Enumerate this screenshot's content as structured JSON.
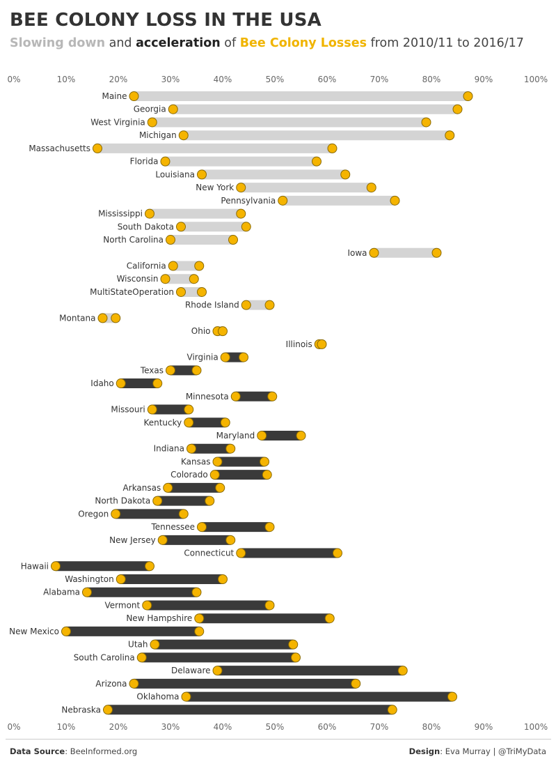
{
  "header": {
    "title": "BEE COLONY LOSS IN THE USA",
    "subtitle_part1": "Slowing down",
    "subtitle_part2": " and ",
    "subtitle_part3": "acceleration",
    "subtitle_part4": " of ",
    "subtitle_part5": "Bee Colony Losses",
    "subtitle_part6": " from 2010/11 to 2016/17"
  },
  "footer": {
    "source_label": "Data Source",
    "source_value": ": BeeInformed.org",
    "design_label": "Design",
    "design_value": ": Eva Murray | @TriMyData"
  },
  "colors": {
    "dot": "#f5b400",
    "dot_stroke": "#8a6a00",
    "bar_slowing": "#d4d4d4",
    "bar_accelerating": "#3a3a3a"
  },
  "chart_data": {
    "type": "dumbbell",
    "title": "BEE COLONY LOSS IN THE USA",
    "xlim": [
      0,
      100
    ],
    "x_ticks": [
      "0%",
      "10%",
      "20%",
      "30%",
      "40%",
      "50%",
      "60%",
      "70%",
      "80%",
      "90%",
      "100%"
    ],
    "grid": false,
    "legend": "none",
    "rows": [
      {
        "state": "Maine",
        "low": 23,
        "high": 87,
        "trend": "slowing"
      },
      {
        "state": "Georgia",
        "low": 30.5,
        "high": 85,
        "trend": "slowing"
      },
      {
        "state": "West Virginia",
        "low": 26.5,
        "high": 79,
        "trend": "slowing"
      },
      {
        "state": "Michigan",
        "low": 32.5,
        "high": 83.5,
        "trend": "slowing"
      },
      {
        "state": "Massachusetts",
        "low": 16,
        "high": 61,
        "trend": "slowing"
      },
      {
        "state": "Florida",
        "low": 29,
        "high": 58,
        "trend": "slowing"
      },
      {
        "state": "Louisiana",
        "low": 36,
        "high": 63.5,
        "trend": "slowing"
      },
      {
        "state": "New York",
        "low": 43.5,
        "high": 68.5,
        "trend": "slowing"
      },
      {
        "state": "Pennsylvania",
        "low": 51.5,
        "high": 73,
        "trend": "slowing"
      },
      {
        "state": "Mississippi",
        "low": 26,
        "high": 43.5,
        "trend": "slowing"
      },
      {
        "state": "South Dakota",
        "low": 32,
        "high": 44.5,
        "trend": "slowing"
      },
      {
        "state": "North Carolina",
        "low": 30,
        "high": 42,
        "trend": "slowing"
      },
      {
        "state": "Iowa",
        "low": 69,
        "high": 81,
        "trend": "slowing"
      },
      {
        "state": "California",
        "low": 30.5,
        "high": 35.5,
        "trend": "slowing"
      },
      {
        "state": "Wisconsin",
        "low": 29,
        "high": 34.5,
        "trend": "slowing"
      },
      {
        "state": "MultiStateOperation",
        "low": 32,
        "high": 36,
        "trend": "slowing"
      },
      {
        "state": "Rhode Island",
        "low": 44.5,
        "high": 49,
        "trend": "slowing"
      },
      {
        "state": "Montana",
        "low": 17,
        "high": 19.5,
        "trend": "slowing"
      },
      {
        "state": "Ohio",
        "low": 39,
        "high": 40,
        "trend": "slowing"
      },
      {
        "state": "Illinois",
        "low": 58.5,
        "high": 59,
        "trend": "slowing"
      },
      {
        "state": "Virginia",
        "low": 40.5,
        "high": 44,
        "trend": "accelerating"
      },
      {
        "state": "Texas",
        "low": 30,
        "high": 35,
        "trend": "accelerating"
      },
      {
        "state": "Idaho",
        "low": 20.5,
        "high": 27.5,
        "trend": "accelerating"
      },
      {
        "state": "Minnesota",
        "low": 42.5,
        "high": 49.5,
        "trend": "accelerating"
      },
      {
        "state": "Missouri",
        "low": 26.5,
        "high": 33.5,
        "trend": "accelerating"
      },
      {
        "state": "Kentucky",
        "low": 33.5,
        "high": 40.5,
        "trend": "accelerating"
      },
      {
        "state": "Maryland",
        "low": 47.5,
        "high": 55,
        "trend": "accelerating"
      },
      {
        "state": "Indiana",
        "low": 34,
        "high": 41.5,
        "trend": "accelerating"
      },
      {
        "state": "Kansas",
        "low": 39,
        "high": 48,
        "trend": "accelerating"
      },
      {
        "state": "Colorado",
        "low": 38.5,
        "high": 48.5,
        "trend": "accelerating"
      },
      {
        "state": "Arkansas",
        "low": 29.5,
        "high": 39.5,
        "trend": "accelerating"
      },
      {
        "state": "North Dakota",
        "low": 27.5,
        "high": 37.5,
        "trend": "accelerating"
      },
      {
        "state": "Oregon",
        "low": 19.5,
        "high": 32.5,
        "trend": "accelerating"
      },
      {
        "state": "Tennessee",
        "low": 36,
        "high": 49,
        "trend": "accelerating"
      },
      {
        "state": "New Jersey",
        "low": 28.5,
        "high": 41.5,
        "trend": "accelerating"
      },
      {
        "state": "Connecticut",
        "low": 43.5,
        "high": 62,
        "trend": "accelerating"
      },
      {
        "state": "Hawaii",
        "low": 8,
        "high": 26,
        "trend": "accelerating"
      },
      {
        "state": "Washington",
        "low": 20.5,
        "high": 40,
        "trend": "accelerating"
      },
      {
        "state": "Alabama",
        "low": 14,
        "high": 35,
        "trend": "accelerating"
      },
      {
        "state": "Vermont",
        "low": 25.5,
        "high": 49,
        "trend": "accelerating"
      },
      {
        "state": "New Hampshire",
        "low": 35.5,
        "high": 60.5,
        "trend": "accelerating"
      },
      {
        "state": "New Mexico",
        "low": 10,
        "high": 35.5,
        "trend": "accelerating"
      },
      {
        "state": "Utah",
        "low": 27,
        "high": 53.5,
        "trend": "accelerating"
      },
      {
        "state": "South Carolina",
        "low": 24.5,
        "high": 54,
        "trend": "accelerating"
      },
      {
        "state": "Delaware",
        "low": 39,
        "high": 74.5,
        "trend": "accelerating"
      },
      {
        "state": "Arizona",
        "low": 23,
        "high": 65.5,
        "trend": "accelerating"
      },
      {
        "state": "Oklahoma",
        "low": 33,
        "high": 84,
        "trend": "accelerating"
      },
      {
        "state": "Nebraska",
        "low": 18,
        "high": 72.5,
        "trend": "accelerating"
      }
    ]
  }
}
